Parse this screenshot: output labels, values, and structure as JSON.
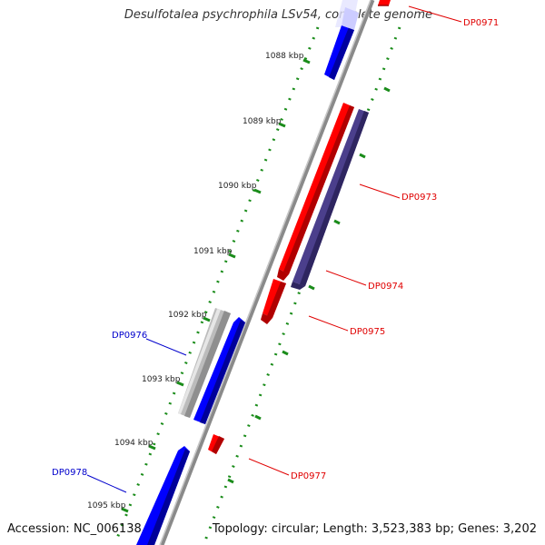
{
  "title": "Desulfotalea psychrophila LSv54, complete genome",
  "footer": {
    "accession": "Accession: NC_006138",
    "summary": "Topology: circular; Length: 3,523,383 bp; Genes: 3,202"
  },
  "ticks": [
    "1088 kbp",
    "1089 kbp",
    "1090 kbp",
    "1091 kbp",
    "1092 kbp",
    "1093 kbp",
    "1094 kbp",
    "1095 kbp"
  ],
  "genes": [
    {
      "label": "DP0971",
      "color": "#e00000"
    },
    {
      "label": "DP0973",
      "color": "#e00000"
    },
    {
      "label": "DP0974",
      "color": "#e00000"
    },
    {
      "label": "DP0975",
      "color": "#e00000"
    },
    {
      "label": "DP0976",
      "color": "#0000cc"
    },
    {
      "label": "DP0977",
      "color": "#e00000"
    },
    {
      "label": "DP0978",
      "color": "#0000cc"
    }
  ],
  "colors": {
    "forward": "#0000ff",
    "reverse": "#ff0000",
    "other": "#4b3f8c",
    "pseudo": "#bcbcbc",
    "tick_mark": "#1a8c1a",
    "backbone": "#8a8a8a"
  }
}
